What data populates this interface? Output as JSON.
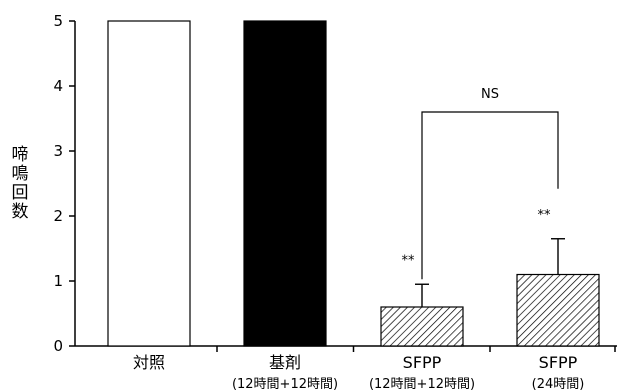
{
  "chart_data": {
    "type": "bar",
    "ylabel": "啼鳴回数",
    "ylim": [
      0,
      5
    ],
    "yticks": [
      0,
      1,
      2,
      3,
      4,
      5
    ],
    "categories": [
      {
        "label": "対照",
        "sublabel": ""
      },
      {
        "label": "基剤",
        "sublabel": "(12時間+12時間)"
      },
      {
        "label": "SFPP",
        "sublabel": "(12時間+12時間)"
      },
      {
        "label": "SFPP",
        "sublabel": "(24時間)"
      }
    ],
    "values": [
      5,
      5,
      0.6,
      1.1
    ],
    "errors": [
      null,
      null,
      0.35,
      0.55
    ],
    "fills": [
      "white",
      "black",
      "hatched",
      "hatched"
    ],
    "significance": [
      "",
      "",
      "**",
      "**"
    ],
    "comparison": {
      "from": 2,
      "to": 3,
      "label": "NS",
      "level": 3.6
    },
    "colors": {
      "bar_edge": "#000000",
      "solid": "#000000",
      "empty": "#ffffff"
    }
  }
}
